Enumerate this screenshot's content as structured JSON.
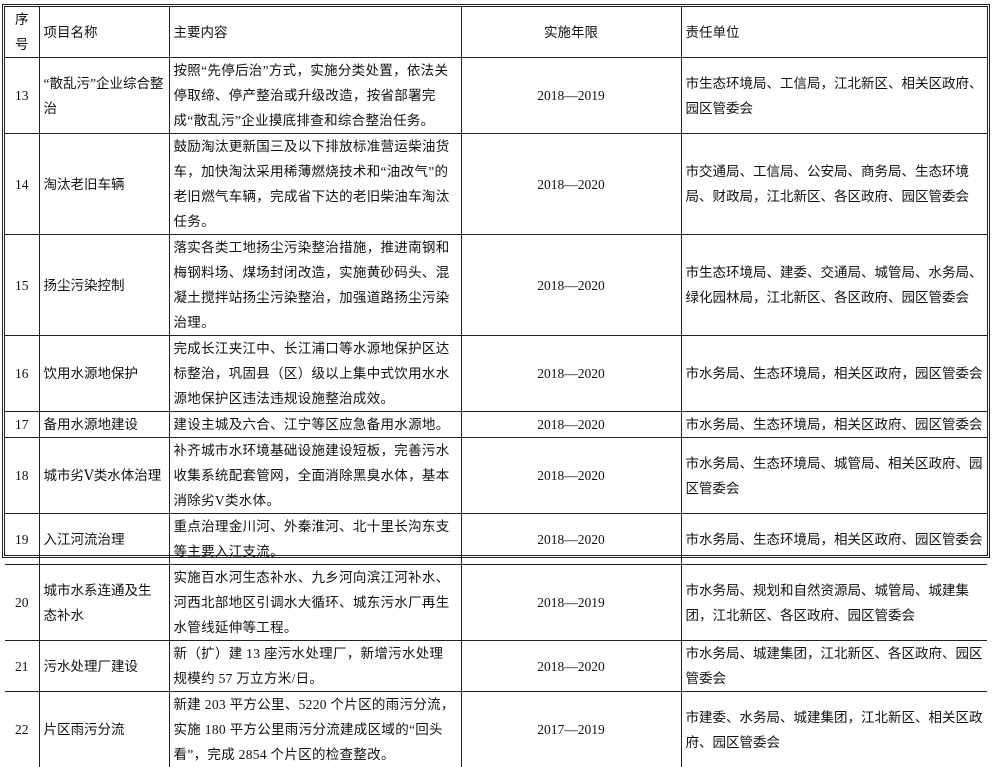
{
  "headers": {
    "no": "序号",
    "name": "项目名称",
    "content": "主要内容",
    "period": "实施年限",
    "unit": "责任单位"
  },
  "rows": [
    {
      "no": "13",
      "name": "“散乱污”企业综合整治",
      "content": "按照“先停后治”方式，实施分类处置，依法关停取缔、停产整治或升级改造，按省部署完成“散乱污”企业摸底排查和综合整治任务。",
      "period": "2018—2019",
      "unit": "市生态环境局、工信局，江北新区、相关区政府、园区管委会"
    },
    {
      "no": "14",
      "name": "淘汰老旧车辆",
      "content": "鼓励淘汰更新国三及以下排放标准营运柴油货车，加快淘汰采用稀薄燃烧技术和“油改气”的老旧燃气车辆，完成省下达的老旧柴油车淘汰任务。",
      "period": "2018—2020",
      "unit": "市交通局、工信局、公安局、商务局、生态环境局、财政局，江北新区、各区政府、园区管委会"
    },
    {
      "no": "15",
      "name": "扬尘污染控制",
      "content": "落实各类工地扬尘污染整治措施，推进南钢和梅钢料场、煤场封闭改造，实施黄砂码头、混凝土搅拌站扬尘污染整治，加强道路扬尘污染治理。",
      "period": "2018—2020",
      "unit": "市生态环境局、建委、交通局、城管局、水务局、绿化园林局，江北新区、各区政府、园区管委会"
    },
    {
      "no": "16",
      "name": "饮用水源地保护",
      "content": "完成长江夹江中、长江浦口等水源地保护区达标整治，巩固县（区）级以上集中式饮用水水源地保护区违法违规设施整治成效。",
      "period": "2018—2020",
      "unit": "市水务局、生态环境局，相关区政府，园区管委会"
    },
    {
      "no": "17",
      "name": "备用水源地建设",
      "content": "建设主城及六合、江宁等区应急备用水源地。",
      "period": "2018—2020",
      "unit": "市水务局、生态环境局，相关区政府、园区管委会"
    },
    {
      "no": "18",
      "name": "城市劣Ⅴ类水体治理",
      "content": "补齐城市水环境基础设施建设短板，完善污水收集系统配套管网，全面消除黑臭水体，基本消除劣V类水体。",
      "period": "2018—2020",
      "unit": "市水务局、生态环境局、城管局、相关区政府、园区管委会"
    },
    {
      "no": "19",
      "name": "入江河流治理",
      "content": "重点治理金川河、外秦淮河、北十里长沟东支等主要入江支流。",
      "period": "2018—2020",
      "unit": "市水务局、生态环境局，相关区政府、园区管委会"
    },
    {
      "no": "20",
      "name": "城市水系连通及生态补水",
      "content": "实施百水河生态补水、九乡河向滨江河补水、河西北部地区引调水大循环、城东污水厂再生水管线延伸等工程。",
      "period": "2018—2019",
      "unit": "市水务局、规划和自然资源局、城管局、城建集团，江北新区、各区政府、园区管委会"
    },
    {
      "no": "21",
      "name": "污水处理厂建设",
      "content": "新（扩）建 13 座污水处理厂，新增污水处理规模约 57 万立方米/日。",
      "period": "2018—2020",
      "unit": "市水务局、城建集团，江北新区、各区政府、园区管委会"
    },
    {
      "no": "22",
      "name": "片区雨污分流",
      "content": "新建 203 平方公里、5220 个片区的雨污分流，实施 180 平方公里雨污分流建成区域的“回头看”，完成 2854 个片区的检查整改。",
      "period": "2017—2019",
      "unit": "市建委、水务局、城建集团，江北新区、相关区政府、园区管委会"
    }
  ]
}
